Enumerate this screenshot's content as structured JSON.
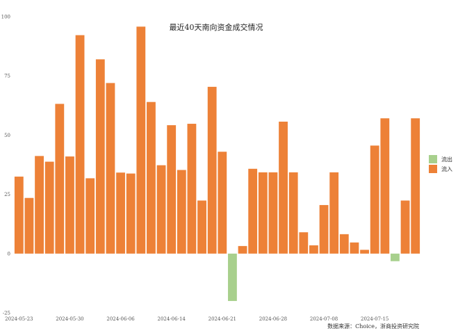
{
  "chart_data": {
    "type": "bar",
    "title": "最近40天南向资金成交情况",
    "xlabel": "",
    "ylabel": "",
    "ylim": [
      -25,
      100
    ],
    "yticks": [
      100,
      75,
      50,
      25,
      0,
      -25
    ],
    "grid": false,
    "legend_position": "right",
    "x_tick_labels": [
      "2024-05-23",
      "2024-05-30",
      "2024-06-06",
      "2024-06-14",
      "2024-06-21",
      "2024-06-28",
      "2024-07-08",
      "2024-07-15"
    ],
    "x_tick_indices": [
      0,
      5,
      10,
      15,
      20,
      25,
      30,
      35
    ],
    "values": [
      32.5,
      23.5,
      41.2,
      38.8,
      63.2,
      41.0,
      92.2,
      31.8,
      82.0,
      72.0,
      34.2,
      33.8,
      95.8,
      64.0,
      37.3,
      54.2,
      35.3,
      54.8,
      22.4,
      70.4,
      43.0,
      -20.0,
      3.2,
      35.8,
      34.3,
      34.3,
      55.7,
      34.3,
      9.0,
      3.5,
      20.5,
      34.3,
      8.2,
      4.7,
      1.6,
      45.6,
      57.1,
      -3.2,
      22.4,
      57.1
    ],
    "series_names": [
      "流出",
      "流入"
    ],
    "colors": {
      "inflow": "#ed8137",
      "outflow": "#a8d08d"
    },
    "source": "数据来源：Choice，浙商投资研究院"
  }
}
